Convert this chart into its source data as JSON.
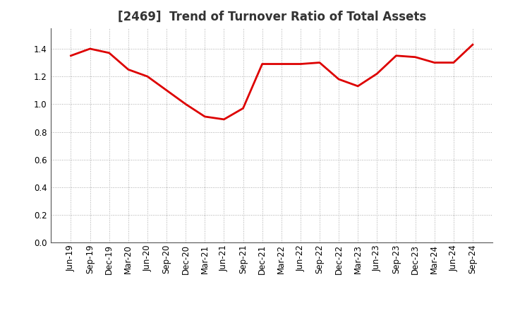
{
  "title": "[2469]  Trend of Turnover Ratio of Total Assets",
  "x_labels": [
    "Jun-19",
    "Sep-19",
    "Dec-19",
    "Mar-20",
    "Jun-20",
    "Sep-20",
    "Dec-20",
    "Mar-21",
    "Jun-21",
    "Sep-21",
    "Dec-21",
    "Mar-22",
    "Jun-22",
    "Sep-22",
    "Dec-22",
    "Mar-23",
    "Jun-23",
    "Sep-23",
    "Dec-23",
    "Mar-24",
    "Jun-24",
    "Sep-24"
  ],
  "y_values": [
    1.35,
    1.4,
    1.37,
    1.25,
    1.2,
    1.1,
    1.0,
    0.91,
    0.89,
    0.97,
    1.29,
    1.29,
    1.29,
    1.3,
    1.18,
    1.13,
    1.22,
    1.35,
    1.34,
    1.3,
    1.3,
    1.43
  ],
  "line_color": "#dd0000",
  "line_width": 2.0,
  "ylim": [
    0.0,
    1.55
  ],
  "yticks": [
    0.0,
    0.2,
    0.4,
    0.6,
    0.8,
    1.0,
    1.2,
    1.4
  ],
  "grid_color": "#aaaaaa",
  "background_color": "#ffffff",
  "title_fontsize": 12,
  "tick_fontsize": 8.5
}
